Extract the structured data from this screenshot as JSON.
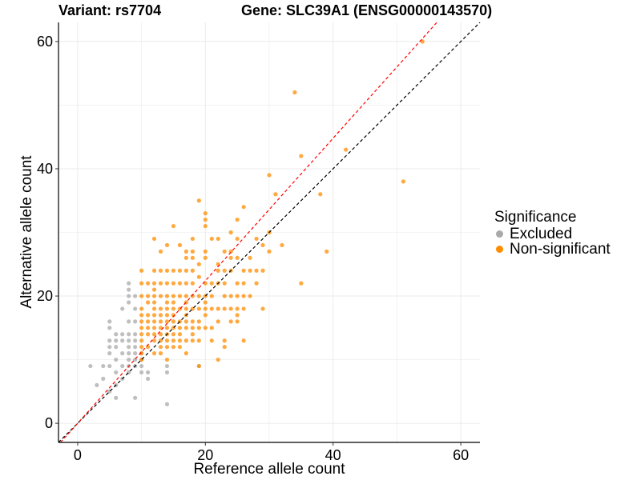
{
  "titles": {
    "left": "Variant: rs7704",
    "right": "Gene: SLC39A1 (ENSG00000143570)"
  },
  "legend": {
    "title": "Significance",
    "items": [
      {
        "label": "Excluded",
        "color": "#a9a9a9"
      },
      {
        "label": "Non-significant",
        "color": "#ff8c00"
      }
    ]
  },
  "colors": {
    "excluded": "#a9a9a9",
    "non_significant": "#ff8c00",
    "identity_line": "#000000",
    "fit_line": "#ff0000",
    "grid": "#ebebeb"
  },
  "chart_data": {
    "type": "scatter",
    "xlabel": "Reference allele count",
    "ylabel": "Alternative allele count",
    "xlim": [
      -3,
      63
    ],
    "ylim": [
      -3,
      63
    ],
    "x_ticks": [
      0,
      20,
      40,
      60
    ],
    "y_ticks": [
      0,
      20,
      40,
      60
    ],
    "grid": true,
    "legend_position": "right",
    "reference_lines": [
      {
        "name": "identity",
        "slope": 1,
        "intercept": 0,
        "style": "dashed",
        "color": "#000000"
      },
      {
        "name": "fit",
        "slope": 1.12,
        "intercept": 0,
        "style": "dashed",
        "color": "#ff0000"
      }
    ],
    "series": [
      {
        "name": "Excluded",
        "color": "#a9a9a9",
        "points": [
          [
            2,
            9
          ],
          [
            3,
            6
          ],
          [
            4,
            9
          ],
          [
            4,
            7
          ],
          [
            5,
            5
          ],
          [
            5,
            9
          ],
          [
            5,
            11
          ],
          [
            5,
            12
          ],
          [
            5,
            13
          ],
          [
            5,
            15
          ],
          [
            5,
            16
          ],
          [
            6,
            4
          ],
          [
            6,
            6
          ],
          [
            6,
            8
          ],
          [
            6,
            10
          ],
          [
            6,
            12
          ],
          [
            6,
            13
          ],
          [
            6,
            14
          ],
          [
            7,
            7
          ],
          [
            7,
            9
          ],
          [
            7,
            11
          ],
          [
            7,
            13
          ],
          [
            7,
            14
          ],
          [
            7,
            18
          ],
          [
            8,
            8
          ],
          [
            8,
            9
          ],
          [
            8,
            10
          ],
          [
            8,
            11
          ],
          [
            8,
            12
          ],
          [
            8,
            13
          ],
          [
            8,
            14
          ],
          [
            8,
            16
          ],
          [
            8,
            19
          ],
          [
            8,
            20
          ],
          [
            8,
            21
          ],
          [
            8,
            22
          ],
          [
            9,
            4
          ],
          [
            9,
            9
          ],
          [
            9,
            10
          ],
          [
            9,
            11
          ],
          [
            9,
            12
          ],
          [
            9,
            13
          ],
          [
            9,
            14
          ],
          [
            9,
            16
          ],
          [
            9,
            18
          ],
          [
            9,
            20
          ],
          [
            10,
            8
          ],
          [
            10,
            9
          ],
          [
            10,
            10
          ],
          [
            10,
            11
          ],
          [
            11,
            7
          ],
          [
            11,
            8
          ],
          [
            14,
            3
          ],
          [
            14,
            8
          ],
          [
            14,
            9
          ],
          [
            19,
            9
          ]
        ]
      },
      {
        "name": "Non-significant",
        "color": "#ff8c00",
        "points": [
          [
            10,
            10
          ],
          [
            10,
            11
          ],
          [
            10,
            12
          ],
          [
            10,
            13
          ],
          [
            10,
            14
          ],
          [
            10,
            15
          ],
          [
            10,
            16
          ],
          [
            10,
            17
          ],
          [
            10,
            18
          ],
          [
            10,
            20
          ],
          [
            10,
            22
          ],
          [
            10,
            24
          ],
          [
            11,
            12
          ],
          [
            11,
            14
          ],
          [
            11,
            15
          ],
          [
            11,
            16
          ],
          [
            11,
            17
          ],
          [
            11,
            19
          ],
          [
            11,
            20
          ],
          [
            11,
            22
          ],
          [
            12,
            11
          ],
          [
            12,
            13
          ],
          [
            12,
            14
          ],
          [
            12,
            15
          ],
          [
            12,
            16
          ],
          [
            12,
            17
          ],
          [
            12,
            18
          ],
          [
            12,
            19
          ],
          [
            12,
            20
          ],
          [
            12,
            21
          ],
          [
            12,
            22
          ],
          [
            12,
            24
          ],
          [
            12,
            29
          ],
          [
            13,
            11
          ],
          [
            13,
            12
          ],
          [
            13,
            13
          ],
          [
            13,
            14
          ],
          [
            13,
            15
          ],
          [
            13,
            16
          ],
          [
            13,
            17
          ],
          [
            13,
            18
          ],
          [
            13,
            20
          ],
          [
            13,
            22
          ],
          [
            13,
            24
          ],
          [
            13,
            27
          ],
          [
            14,
            10
          ],
          [
            14,
            12
          ],
          [
            14,
            13
          ],
          [
            14,
            14
          ],
          [
            14,
            15
          ],
          [
            14,
            16
          ],
          [
            14,
            17
          ],
          [
            14,
            18
          ],
          [
            14,
            19
          ],
          [
            14,
            20
          ],
          [
            14,
            22
          ],
          [
            14,
            24
          ],
          [
            14,
            28
          ],
          [
            15,
            12
          ],
          [
            15,
            13
          ],
          [
            15,
            14
          ],
          [
            15,
            15
          ],
          [
            15,
            16
          ],
          [
            15,
            17
          ],
          [
            15,
            18
          ],
          [
            15,
            19
          ],
          [
            15,
            20
          ],
          [
            15,
            22
          ],
          [
            15,
            24
          ],
          [
            15,
            31
          ],
          [
            16,
            12
          ],
          [
            16,
            13
          ],
          [
            16,
            14
          ],
          [
            16,
            15
          ],
          [
            16,
            16
          ],
          [
            16,
            18
          ],
          [
            16,
            20
          ],
          [
            16,
            22
          ],
          [
            16,
            24
          ],
          [
            16,
            28
          ],
          [
            17,
            11
          ],
          [
            17,
            13
          ],
          [
            17,
            15
          ],
          [
            17,
            16
          ],
          [
            17,
            17
          ],
          [
            17,
            18
          ],
          [
            17,
            19
          ],
          [
            17,
            20
          ],
          [
            17,
            22
          ],
          [
            17,
            24
          ],
          [
            17,
            26
          ],
          [
            17,
            27
          ],
          [
            18,
            13
          ],
          [
            18,
            14
          ],
          [
            18,
            15
          ],
          [
            18,
            16
          ],
          [
            18,
            18
          ],
          [
            18,
            20
          ],
          [
            18,
            22
          ],
          [
            18,
            24
          ],
          [
            18,
            26
          ],
          [
            18,
            27
          ],
          [
            18,
            29
          ],
          [
            19,
            9
          ],
          [
            19,
            13
          ],
          [
            19,
            15
          ],
          [
            19,
            16
          ],
          [
            19,
            18
          ],
          [
            19,
            20
          ],
          [
            19,
            23
          ],
          [
            19,
            25
          ],
          [
            19,
            35
          ],
          [
            20,
            15
          ],
          [
            20,
            17
          ],
          [
            20,
            18
          ],
          [
            20,
            19
          ],
          [
            20,
            20
          ],
          [
            20,
            22
          ],
          [
            20,
            26
          ],
          [
            20,
            27
          ],
          [
            20,
            31
          ],
          [
            20,
            32
          ],
          [
            20,
            33
          ],
          [
            21,
            13
          ],
          [
            21,
            15
          ],
          [
            21,
            18
          ],
          [
            21,
            20
          ],
          [
            21,
            22
          ],
          [
            21,
            29
          ],
          [
            22,
            10
          ],
          [
            22,
            16
          ],
          [
            22,
            18
          ],
          [
            22,
            22
          ],
          [
            22,
            24
          ],
          [
            22,
            25
          ],
          [
            22,
            29
          ],
          [
            23,
            12
          ],
          [
            23,
            13
          ],
          [
            23,
            18
          ],
          [
            23,
            20
          ],
          [
            23,
            22
          ],
          [
            23,
            24
          ],
          [
            23,
            27
          ],
          [
            24,
            16
          ],
          [
            24,
            18
          ],
          [
            24,
            20
          ],
          [
            24,
            24
          ],
          [
            24,
            26
          ],
          [
            24,
            27
          ],
          [
            24,
            30
          ],
          [
            25,
            16
          ],
          [
            25,
            17
          ],
          [
            25,
            18
          ],
          [
            25,
            20
          ],
          [
            25,
            22
          ],
          [
            25,
            26
          ],
          [
            25,
            29
          ],
          [
            25,
            32
          ],
          [
            26,
            13
          ],
          [
            26,
            18
          ],
          [
            26,
            20
          ],
          [
            26,
            22
          ],
          [
            26,
            24
          ],
          [
            26,
            34
          ],
          [
            27,
            20
          ],
          [
            27,
            24
          ],
          [
            27,
            26
          ],
          [
            28,
            22
          ],
          [
            28,
            24
          ],
          [
            28,
            29
          ],
          [
            29,
            18
          ],
          [
            29,
            24
          ],
          [
            29,
            28
          ],
          [
            30,
            27
          ],
          [
            30,
            30
          ],
          [
            30,
            39
          ],
          [
            31,
            36
          ],
          [
            32,
            28
          ],
          [
            34,
            52
          ],
          [
            35,
            22
          ],
          [
            35,
            42
          ],
          [
            38,
            36
          ],
          [
            39,
            27
          ],
          [
            42,
            43
          ],
          [
            51,
            38
          ],
          [
            54,
            60
          ]
        ]
      }
    ]
  }
}
